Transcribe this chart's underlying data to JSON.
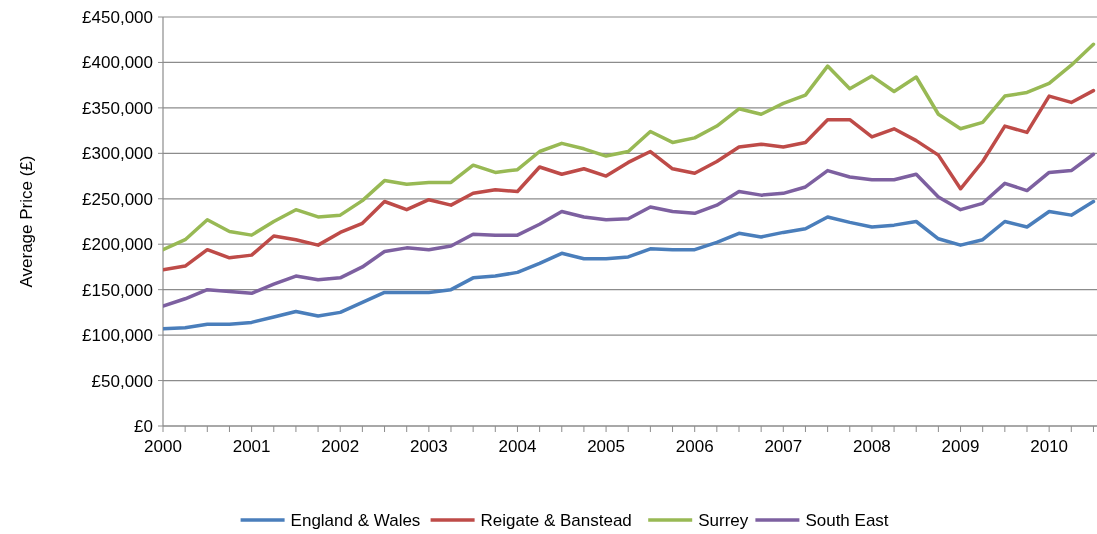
{
  "chart_data": {
    "type": "line",
    "ylabel": "Average Price (£)",
    "x": [
      2000,
      2000.25,
      2000.5,
      2000.75,
      2001,
      2001.25,
      2001.5,
      2001.75,
      2002,
      2002.25,
      2002.5,
      2002.75,
      2003,
      2003.25,
      2003.5,
      2003.75,
      2004,
      2004.25,
      2004.5,
      2004.75,
      2005,
      2005.25,
      2005.5,
      2005.75,
      2006,
      2006.25,
      2006.5,
      2006.75,
      2007,
      2007.25,
      2007.5,
      2007.75,
      2008,
      2008.25,
      2008.5,
      2008.75,
      2009,
      2009.25,
      2009.5,
      2009.75,
      2010,
      2010.25,
      2010.5
    ],
    "series": [
      {
        "name": "England & Wales",
        "color": "#4a7ebb",
        "values": [
          107000,
          108000,
          112000,
          112000,
          114000,
          120000,
          126000,
          121000,
          125000,
          136000,
          147000,
          147000,
          147000,
          150000,
          163000,
          165000,
          169000,
          179000,
          190000,
          184000,
          184000,
          186000,
          195000,
          194000,
          194000,
          202000,
          212000,
          208000,
          213000,
          217000,
          230000,
          224000,
          219000,
          221000,
          225000,
          206000,
          199000,
          205000,
          225000,
          219000,
          236000,
          232000,
          247000
        ]
      },
      {
        "name": "Reigate & Banstead",
        "color": "#be4b48",
        "values": [
          172000,
          176000,
          194000,
          185000,
          188000,
          209000,
          205000,
          199000,
          213000,
          223000,
          247000,
          238000,
          249000,
          243000,
          256000,
          260000,
          258000,
          285000,
          277000,
          283000,
          275000,
          290000,
          302000,
          283000,
          278000,
          291000,
          307000,
          310000,
          307000,
          312000,
          337000,
          337000,
          318000,
          327000,
          314000,
          298000,
          261000,
          291000,
          330000,
          323000,
          363000,
          356000,
          369000
        ]
      },
      {
        "name": "Surrey",
        "color": "#98b954",
        "values": [
          194000,
          205000,
          227000,
          214000,
          210000,
          225000,
          238000,
          230000,
          232000,
          248000,
          270000,
          266000,
          268000,
          268000,
          287000,
          279000,
          282000,
          302000,
          311000,
          305000,
          297000,
          302000,
          324000,
          312000,
          317000,
          330000,
          349000,
          343000,
          355000,
          364000,
          396000,
          371000,
          385000,
          368000,
          384000,
          343000,
          327000,
          334000,
          363000,
          367000,
          377000,
          397000,
          420000
        ]
      },
      {
        "name": "South East",
        "color": "#7d60a0",
        "values": [
          132000,
          140000,
          150000,
          148000,
          146000,
          156000,
          165000,
          161000,
          163000,
          175000,
          192000,
          196000,
          194000,
          198000,
          211000,
          210000,
          210000,
          222000,
          236000,
          230000,
          227000,
          228000,
          241000,
          236000,
          234000,
          243000,
          258000,
          254000,
          256000,
          263000,
          281000,
          274000,
          271000,
          271000,
          277000,
          252000,
          238000,
          245000,
          267000,
          259000,
          279000,
          281000,
          299000
        ]
      }
    ],
    "xlim": [
      2000,
      2010.54
    ],
    "xticks": [
      2000,
      {
        "value": 2000.25,
        "label": null
      },
      {
        "value": 2000.5,
        "label": null
      },
      {
        "value": 2000.75,
        "label": null
      },
      2001,
      {
        "value": 2001.25,
        "label": null
      },
      {
        "value": 2001.5,
        "label": null
      },
      {
        "value": 2001.75,
        "label": null
      },
      2002,
      {
        "value": 2002.25,
        "label": null
      },
      {
        "value": 2002.5,
        "label": null
      },
      {
        "value": 2002.75,
        "label": null
      },
      2003,
      {
        "value": 2003.25,
        "label": null
      },
      {
        "value": 2003.5,
        "label": null
      },
      {
        "value": 2003.75,
        "label": null
      },
      2004,
      {
        "value": 2004.25,
        "label": null
      },
      {
        "value": 2004.5,
        "label": null
      },
      {
        "value": 2004.75,
        "label": null
      },
      2005,
      {
        "value": 2005.25,
        "label": null
      },
      {
        "value": 2005.5,
        "label": null
      },
      {
        "value": 2005.75,
        "label": null
      },
      2006,
      {
        "value": 2006.25,
        "label": null
      },
      {
        "value": 2006.5,
        "label": null
      },
      {
        "value": 2006.75,
        "label": null
      },
      2007,
      {
        "value": 2007.25,
        "label": null
      },
      {
        "value": 2007.5,
        "label": null
      },
      {
        "value": 2007.75,
        "label": null
      },
      2008,
      {
        "value": 2008.25,
        "label": null
      },
      {
        "value": 2008.5,
        "label": null
      },
      {
        "value": 2008.75,
        "label": null
      },
      2009,
      {
        "value": 2009.25,
        "label": null
      },
      {
        "value": 2009.5,
        "label": null
      },
      {
        "value": 2009.75,
        "label": null
      },
      2010,
      {
        "value": 2010.25,
        "label": null
      },
      {
        "value": 2010.5,
        "label": null
      }
    ],
    "ylim": [
      0,
      450000
    ],
    "yticks": [
      {
        "value": 0,
        "label": "£0"
      },
      {
        "value": 50000,
        "label": "£50,000"
      },
      {
        "value": 100000,
        "label": "£100,000"
      },
      {
        "value": 150000,
        "label": "£150,000"
      },
      {
        "value": 200000,
        "label": "£200,000"
      },
      {
        "value": 250000,
        "label": "£250,000"
      },
      {
        "value": 300000,
        "label": "£300,000"
      },
      {
        "value": 350000,
        "label": "£350,000"
      },
      {
        "value": 400000,
        "label": "£400,000"
      },
      {
        "value": 450000,
        "label": "£450,000"
      }
    ],
    "grid": "y",
    "legend": "bottom",
    "marker": "none",
    "line_style": "solid"
  }
}
